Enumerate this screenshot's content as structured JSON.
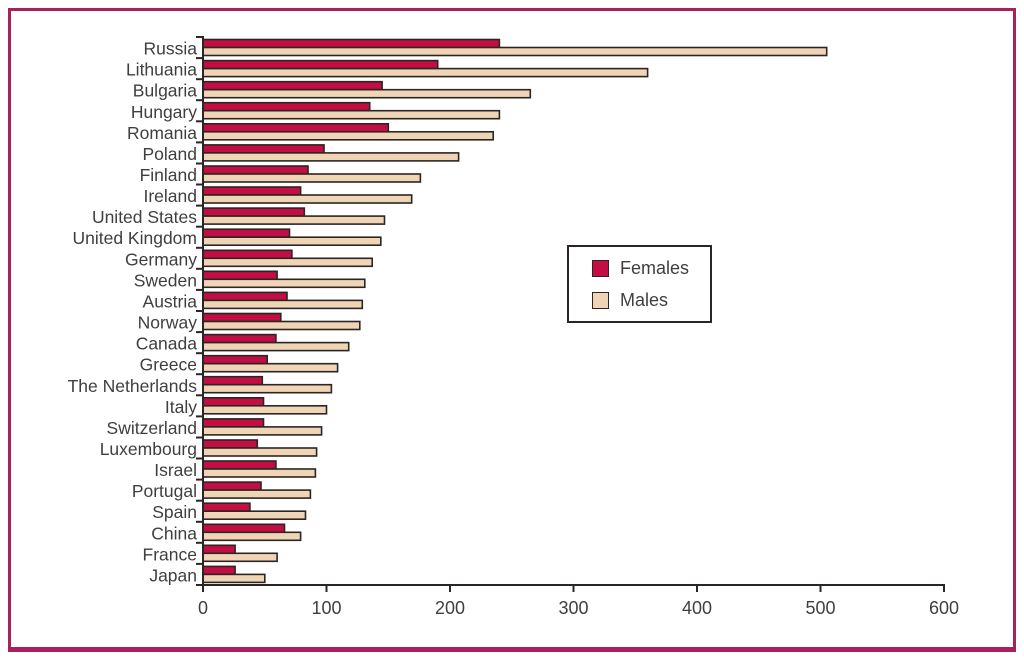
{
  "figure": {
    "frame_color": "#a8215a",
    "background_color": "#ffffff",
    "axis_color": "#2b2623",
    "bar_border_color": "#2b2623",
    "text_color": "#3f3f3f"
  },
  "legend": {
    "items": [
      {
        "label": "Females",
        "color": "#c40d42"
      },
      {
        "label": "Males",
        "color": "#f0d4b6"
      }
    ]
  },
  "chart_data": {
    "type": "bar",
    "orientation": "horizontal",
    "title": "",
    "xlabel": "",
    "ylabel": "",
    "grid": false,
    "legend_position": "center-right",
    "xlim": [
      0,
      600
    ],
    "xticks": [
      0,
      100,
      200,
      300,
      400,
      500,
      600
    ],
    "categories": [
      "Russia",
      "Lithuania",
      "Bulgaria",
      "Hungary",
      "Romania",
      "Poland",
      "Finland",
      "Ireland",
      "United States",
      "United Kingdom",
      "Germany",
      "Sweden",
      "Austria",
      "Norway",
      "Canada",
      "Greece",
      "The Netherlands",
      "Italy",
      "Switzerland",
      "Luxembourg",
      "Israel",
      "Portugal",
      "Spain",
      "China",
      "France",
      "Japan"
    ],
    "series": [
      {
        "name": "Females",
        "color": "#c40d42",
        "values": [
          240,
          190,
          145,
          135,
          150,
          98,
          85,
          79,
          82,
          70,
          72,
          60,
          68,
          63,
          59,
          52,
          48,
          49,
          49,
          44,
          59,
          47,
          38,
          66,
          26,
          26
        ]
      },
      {
        "name": "Males",
        "color": "#f0d4b6",
        "values": [
          505,
          360,
          265,
          240,
          235,
          207,
          176,
          169,
          147,
          144,
          137,
          131,
          129,
          127,
          118,
          109,
          104,
          100,
          96,
          92,
          91,
          87,
          83,
          79,
          60,
          50
        ]
      }
    ]
  }
}
